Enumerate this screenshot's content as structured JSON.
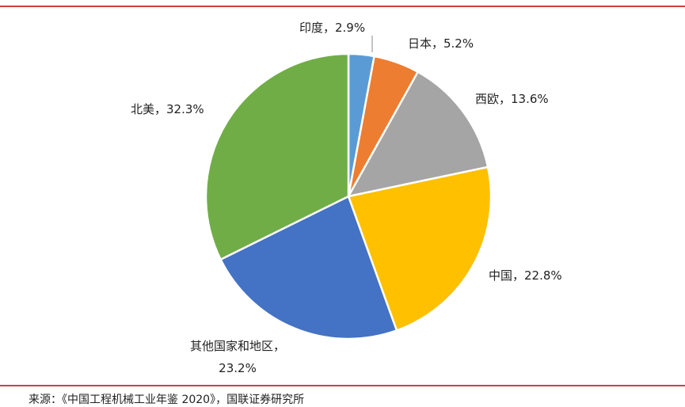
{
  "chart_data": {
    "type": "pie",
    "values": [
      2.9,
      5.2,
      13.6,
      22.8,
      23.2,
      32.3
    ],
    "value_labels": [
      "印度，2.9%",
      "日本，5.2%",
      "西欧，13.6%",
      "中国，22.8%",
      "其他国家和地区，23.2%",
      "北美，32.3%"
    ],
    "colors": [
      "#5b9bd5",
      "#ed7d31",
      "#a5a5a5",
      "#ffc000",
      "#4472c4",
      "#70ad47"
    ],
    "source": "来源：《中国工程机械工业年鉴 2020》，国联证券研究所"
  }
}
